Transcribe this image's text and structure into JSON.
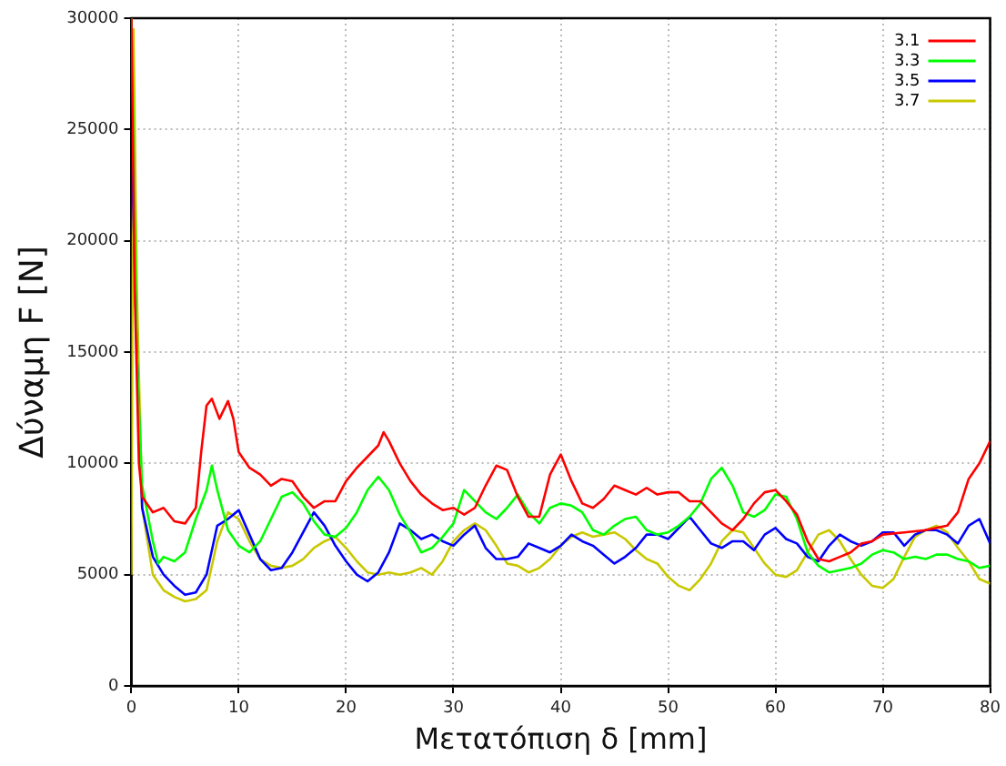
{
  "chart_data": {
    "type": "line",
    "xlabel": "Μετατόπιση δ [mm]",
    "ylabel": "Δύναμη F [N]",
    "xlim": [
      0,
      80
    ],
    "xticks": [
      0,
      10,
      20,
      30,
      40,
      50,
      60,
      70,
      80
    ],
    "ylim": [
      0,
      30000
    ],
    "yticks": [
      0,
      5000,
      10000,
      15000,
      20000,
      25000,
      30000
    ],
    "grid": true,
    "legend": "top right",
    "marker": "none",
    "line_style": "solid",
    "series": [
      {
        "name": "3.1",
        "color": "#ff0000",
        "x": [
          0,
          0.3,
          0.7,
          1,
          2,
          3,
          4,
          5,
          6,
          6.5,
          7,
          7.5,
          8.2,
          9,
          9.5,
          10,
          11,
          12,
          13,
          14,
          15,
          16,
          17,
          18,
          19,
          20,
          21,
          22,
          23,
          23.5,
          24,
          25,
          26,
          27,
          28,
          29,
          30,
          31,
          32,
          33,
          34,
          35,
          36,
          37,
          38,
          39,
          40,
          41,
          42,
          43,
          44,
          45,
          46,
          47,
          48,
          49,
          50,
          51,
          52,
          53,
          54,
          55,
          56,
          57,
          58,
          59,
          60,
          61,
          62,
          63,
          64,
          65,
          66,
          67,
          68,
          69,
          70,
          72,
          74,
          75,
          76,
          77,
          78,
          79,
          80
        ],
        "values": [
          30000,
          18000,
          10000,
          8500,
          7800,
          8000,
          7400,
          7300,
          8000,
          10500,
          12600,
          12900,
          12000,
          12800,
          12000,
          10500,
          9800,
          9500,
          9000,
          9300,
          9200,
          8500,
          8000,
          8300,
          8300,
          9200,
          9800,
          10300,
          10800,
          11400,
          11000,
          10000,
          9200,
          8600,
          8200,
          7900,
          8000,
          7700,
          8000,
          9000,
          9900,
          9700,
          8500,
          7600,
          7600,
          9500,
          10400,
          9200,
          8200,
          8000,
          8400,
          9000,
          8800,
          8600,
          8900,
          8600,
          8700,
          8700,
          8300,
          8300,
          7800,
          7300,
          7000,
          7500,
          8200,
          8700,
          8800,
          8300,
          7700,
          6500,
          5700,
          5600,
          5800,
          6000,
          6400,
          6500,
          6800,
          6900,
          7000,
          7100,
          7200,
          7800,
          9300,
          10000,
          11000
        ]
      },
      {
        "name": "3.3",
        "color": "#00ff00",
        "x": [
          0,
          0.5,
          1,
          2,
          2.5,
          3,
          4,
          5,
          6,
          7,
          7.5,
          8,
          9,
          10,
          11,
          12,
          13,
          14,
          15,
          16,
          17,
          18,
          19,
          20,
          21,
          22,
          23,
          24,
          25,
          26,
          27,
          28,
          29,
          30,
          31,
          32,
          33,
          34,
          35,
          36,
          37,
          38,
          39,
          40,
          41,
          42,
          43,
          44,
          45,
          46,
          47,
          48,
          49,
          50,
          51,
          52,
          53,
          54,
          55,
          56,
          57,
          58,
          59,
          60,
          61,
          62,
          63,
          64,
          65,
          66,
          67,
          68,
          69,
          70,
          71,
          72,
          73,
          74,
          75,
          76,
          77,
          78,
          79,
          80
        ],
        "values": [
          30000,
          15000,
          9000,
          6500,
          5500,
          5800,
          5600,
          6000,
          7500,
          8800,
          9900,
          8800,
          7000,
          6300,
          6000,
          6500,
          7500,
          8500,
          8700,
          8200,
          7400,
          6800,
          6700,
          7100,
          7800,
          8800,
          9400,
          8800,
          7700,
          6900,
          6000,
          6200,
          6700,
          7300,
          8800,
          8300,
          7800,
          7500,
          8000,
          8600,
          7800,
          7300,
          8000,
          8200,
          8100,
          7800,
          7000,
          6800,
          7200,
          7500,
          7600,
          7000,
          6800,
          6900,
          7200,
          7600,
          8200,
          9300,
          9800,
          9000,
          7800,
          7600,
          7900,
          8600,
          8500,
          7500,
          6000,
          5400,
          5100,
          5200,
          5300,
          5500,
          5900,
          6100,
          6000,
          5700,
          5800,
          5700,
          5900,
          5900,
          5700,
          5600,
          5300,
          5400
        ]
      },
      {
        "name": "3.5",
        "color": "#0000ff",
        "x": [
          0,
          0.5,
          1,
          2,
          3,
          4,
          5,
          6,
          7,
          8,
          9,
          10,
          11,
          12,
          13,
          14,
          15,
          16,
          17,
          18,
          19,
          20,
          21,
          22,
          23,
          24,
          25,
          26,
          27,
          28,
          29,
          30,
          31,
          32,
          33,
          34,
          35,
          36,
          37,
          38,
          39,
          40,
          41,
          42,
          43,
          44,
          45,
          46,
          47,
          48,
          49,
          50,
          51,
          52,
          53,
          54,
          55,
          56,
          57,
          58,
          59,
          60,
          61,
          62,
          63,
          64,
          65,
          66,
          67,
          68,
          69,
          70,
          71,
          72,
          73,
          74,
          75,
          76,
          77,
          78,
          79,
          80
        ],
        "values": [
          25000,
          15000,
          8000,
          5800,
          5000,
          4500,
          4100,
          4200,
          5000,
          7200,
          7500,
          7900,
          6800,
          5700,
          5200,
          5300,
          6000,
          6900,
          7800,
          7200,
          6300,
          5600,
          5000,
          4700,
          5100,
          6000,
          7300,
          7000,
          6600,
          6800,
          6500,
          6300,
          6800,
          7200,
          6200,
          5700,
          5700,
          5800,
          6400,
          6200,
          6000,
          6300,
          6800,
          6500,
          6300,
          5900,
          5500,
          5800,
          6200,
          6800,
          6800,
          6600,
          7100,
          7600,
          7000,
          6400,
          6200,
          6500,
          6500,
          6100,
          6800,
          7100,
          6600,
          6400,
          5800,
          5600,
          6300,
          6800,
          6500,
          6300,
          6500,
          6900,
          6900,
          6300,
          6800,
          7000,
          7000,
          6800,
          6400,
          7200,
          7500,
          6400
        ]
      },
      {
        "name": "3.7",
        "color": "#c8c800",
        "x": [
          0,
          0.2,
          0.5,
          1,
          2,
          3,
          4,
          5,
          6,
          7,
          8,
          9,
          10,
          11,
          12,
          13,
          14,
          15,
          16,
          17,
          18,
          19,
          20,
          21,
          22,
          23,
          24,
          25,
          26,
          27,
          28,
          29,
          30,
          31,
          32,
          33,
          34,
          35,
          36,
          37,
          38,
          39,
          40,
          41,
          42,
          43,
          44,
          45,
          46,
          47,
          48,
          49,
          50,
          51,
          52,
          53,
          54,
          55,
          56,
          57,
          58,
          59,
          60,
          61,
          62,
          63,
          64,
          65,
          66,
          67,
          68,
          69,
          70,
          71,
          72,
          73,
          74,
          75,
          76,
          77,
          78,
          79,
          80
        ],
        "values": [
          5000,
          29500,
          18000,
          8000,
          5000,
          4300,
          4000,
          3800,
          3900,
          4300,
          6500,
          7800,
          7500,
          6500,
          5700,
          5400,
          5300,
          5400,
          5700,
          6200,
          6500,
          6700,
          6200,
          5600,
          5100,
          5000,
          5100,
          5000,
          5100,
          5300,
          5000,
          5600,
          6500,
          7000,
          7300,
          7000,
          6300,
          5500,
          5400,
          5100,
          5300,
          5700,
          6300,
          6700,
          6900,
          6700,
          6800,
          6900,
          6600,
          6100,
          5700,
          5500,
          4900,
          4500,
          4300,
          4800,
          5500,
          6500,
          7000,
          6900,
          6200,
          5500,
          5000,
          4900,
          5200,
          6000,
          6800,
          7000,
          6500,
          5700,
          5000,
          4500,
          4400,
          4800,
          5800,
          6700,
          7000,
          7200,
          6900,
          6200,
          5600,
          4800,
          4600
        ]
      }
    ]
  }
}
